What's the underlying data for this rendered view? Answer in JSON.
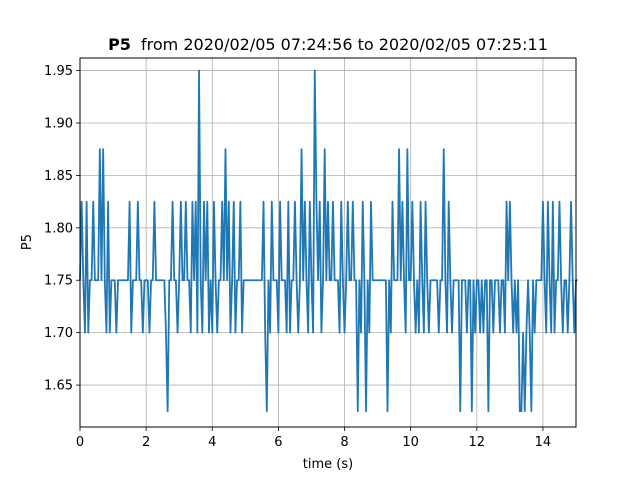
{
  "chart_data": {
    "type": "line",
    "title": {
      "bold": "P5",
      "rest": "from 2020/02/05 07:24:56 to 2020/02/05 07:25:11"
    },
    "xlabel": "time (s)",
    "ylabel": "P5",
    "xlim": [
      0,
      15
    ],
    "ylim": [
      1.61,
      1.962
    ],
    "grid": true,
    "x_ticks": [
      0,
      2,
      4,
      6,
      8,
      10,
      12,
      14
    ],
    "x_tick_labels": [
      "0",
      "2",
      "4",
      "6",
      "8",
      "10",
      "12",
      "14"
    ],
    "y_ticks": [
      1.65,
      1.7,
      1.75,
      1.8,
      1.85,
      1.9,
      1.95
    ],
    "y_tick_labels": [
      "1.65",
      "1.70",
      "1.75",
      "1.80",
      "1.85",
      "1.90",
      "1.95"
    ],
    "series": [
      {
        "color": "#1f77b4",
        "dt": 0.05,
        "values": [
          1.75,
          1.825,
          1.75,
          1.7,
          1.825,
          1.7,
          1.75,
          1.75,
          1.825,
          1.75,
          1.75,
          1.75,
          1.875,
          1.75,
          1.875,
          1.75,
          1.7,
          1.825,
          1.7,
          1.75,
          1.75,
          1.75,
          1.7,
          1.75,
          1.75,
          1.75,
          1.75,
          1.75,
          1.75,
          1.75,
          1.825,
          1.7,
          1.75,
          1.75,
          1.75,
          1.825,
          1.75,
          1.75,
          1.7,
          1.75,
          1.75,
          1.75,
          1.7,
          1.75,
          1.75,
          1.825,
          1.75,
          1.75,
          1.75,
          1.75,
          1.75,
          1.75,
          1.7,
          1.625,
          1.75,
          1.75,
          1.825,
          1.75,
          1.75,
          1.7,
          1.75,
          1.825,
          1.75,
          1.75,
          1.825,
          1.75,
          1.75,
          1.7,
          1.825,
          1.75,
          1.825,
          1.7,
          1.95,
          1.75,
          1.7,
          1.825,
          1.75,
          1.825,
          1.7,
          1.75,
          1.7,
          1.825,
          1.75,
          1.7,
          1.75,
          1.75,
          1.825,
          1.75,
          1.875,
          1.75,
          1.825,
          1.7,
          1.75,
          1.825,
          1.7,
          1.75,
          1.75,
          1.825,
          1.7,
          1.75,
          1.75,
          1.75,
          1.75,
          1.75,
          1.75,
          1.75,
          1.75,
          1.75,
          1.75,
          1.75,
          1.75,
          1.825,
          1.7,
          1.625,
          1.75,
          1.7,
          1.825,
          1.75,
          1.75,
          1.75,
          1.7,
          1.825,
          1.75,
          1.75,
          1.75,
          1.7,
          1.825,
          1.7,
          1.75,
          1.75,
          1.825,
          1.75,
          1.7,
          1.75,
          1.875,
          1.75,
          1.825,
          1.75,
          1.7,
          1.825,
          1.75,
          1.7,
          1.95,
          1.825,
          1.75,
          1.825,
          1.7,
          1.75,
          1.875,
          1.75,
          1.825,
          1.75,
          1.75,
          1.825,
          1.75,
          1.75,
          1.75,
          1.7,
          1.825,
          1.75,
          1.7,
          1.75,
          1.825,
          1.75,
          1.75,
          1.825,
          1.75,
          1.75,
          1.625,
          1.75,
          1.7,
          1.825,
          1.75,
          1.625,
          1.75,
          1.7,
          1.825,
          1.75,
          1.75,
          1.75,
          1.75,
          1.75,
          1.75,
          1.75,
          1.75,
          1.75,
          1.625,
          1.75,
          1.7,
          1.825,
          1.75,
          1.75,
          1.75,
          1.875,
          1.75,
          1.825,
          1.75,
          1.7,
          1.875,
          1.75,
          1.75,
          1.825,
          1.75,
          1.7,
          1.75,
          1.7,
          1.825,
          1.75,
          1.7,
          1.825,
          1.75,
          1.7,
          1.75,
          1.75,
          1.75,
          1.75,
          1.75,
          1.7,
          1.75,
          1.75,
          1.875,
          1.75,
          1.7,
          1.825,
          1.75,
          1.7,
          1.75,
          1.75,
          1.75,
          1.75,
          1.625,
          1.75,
          1.75,
          1.75,
          1.7,
          1.75,
          1.75,
          1.625,
          1.75,
          1.7,
          1.75,
          1.75,
          1.7,
          1.75,
          1.7,
          1.75,
          1.75,
          1.625,
          1.75,
          1.75,
          1.7,
          1.75,
          1.75,
          1.75,
          1.7,
          1.75,
          1.75,
          1.7,
          1.825,
          1.75,
          1.825,
          1.75,
          1.7,
          1.75,
          1.7,
          1.75,
          1.625,
          1.625,
          1.7,
          1.625,
          1.7,
          1.75,
          1.7,
          1.625,
          1.75,
          1.7,
          1.75,
          1.75,
          1.75,
          1.75,
          1.825,
          1.75,
          1.7,
          1.825,
          1.75,
          1.7,
          1.825,
          1.7,
          1.75,
          1.75,
          1.825,
          1.75,
          1.7,
          1.75,
          1.75,
          1.7,
          1.75,
          1.825,
          1.75,
          1.7,
          1.75,
          1.75
        ]
      }
    ]
  }
}
